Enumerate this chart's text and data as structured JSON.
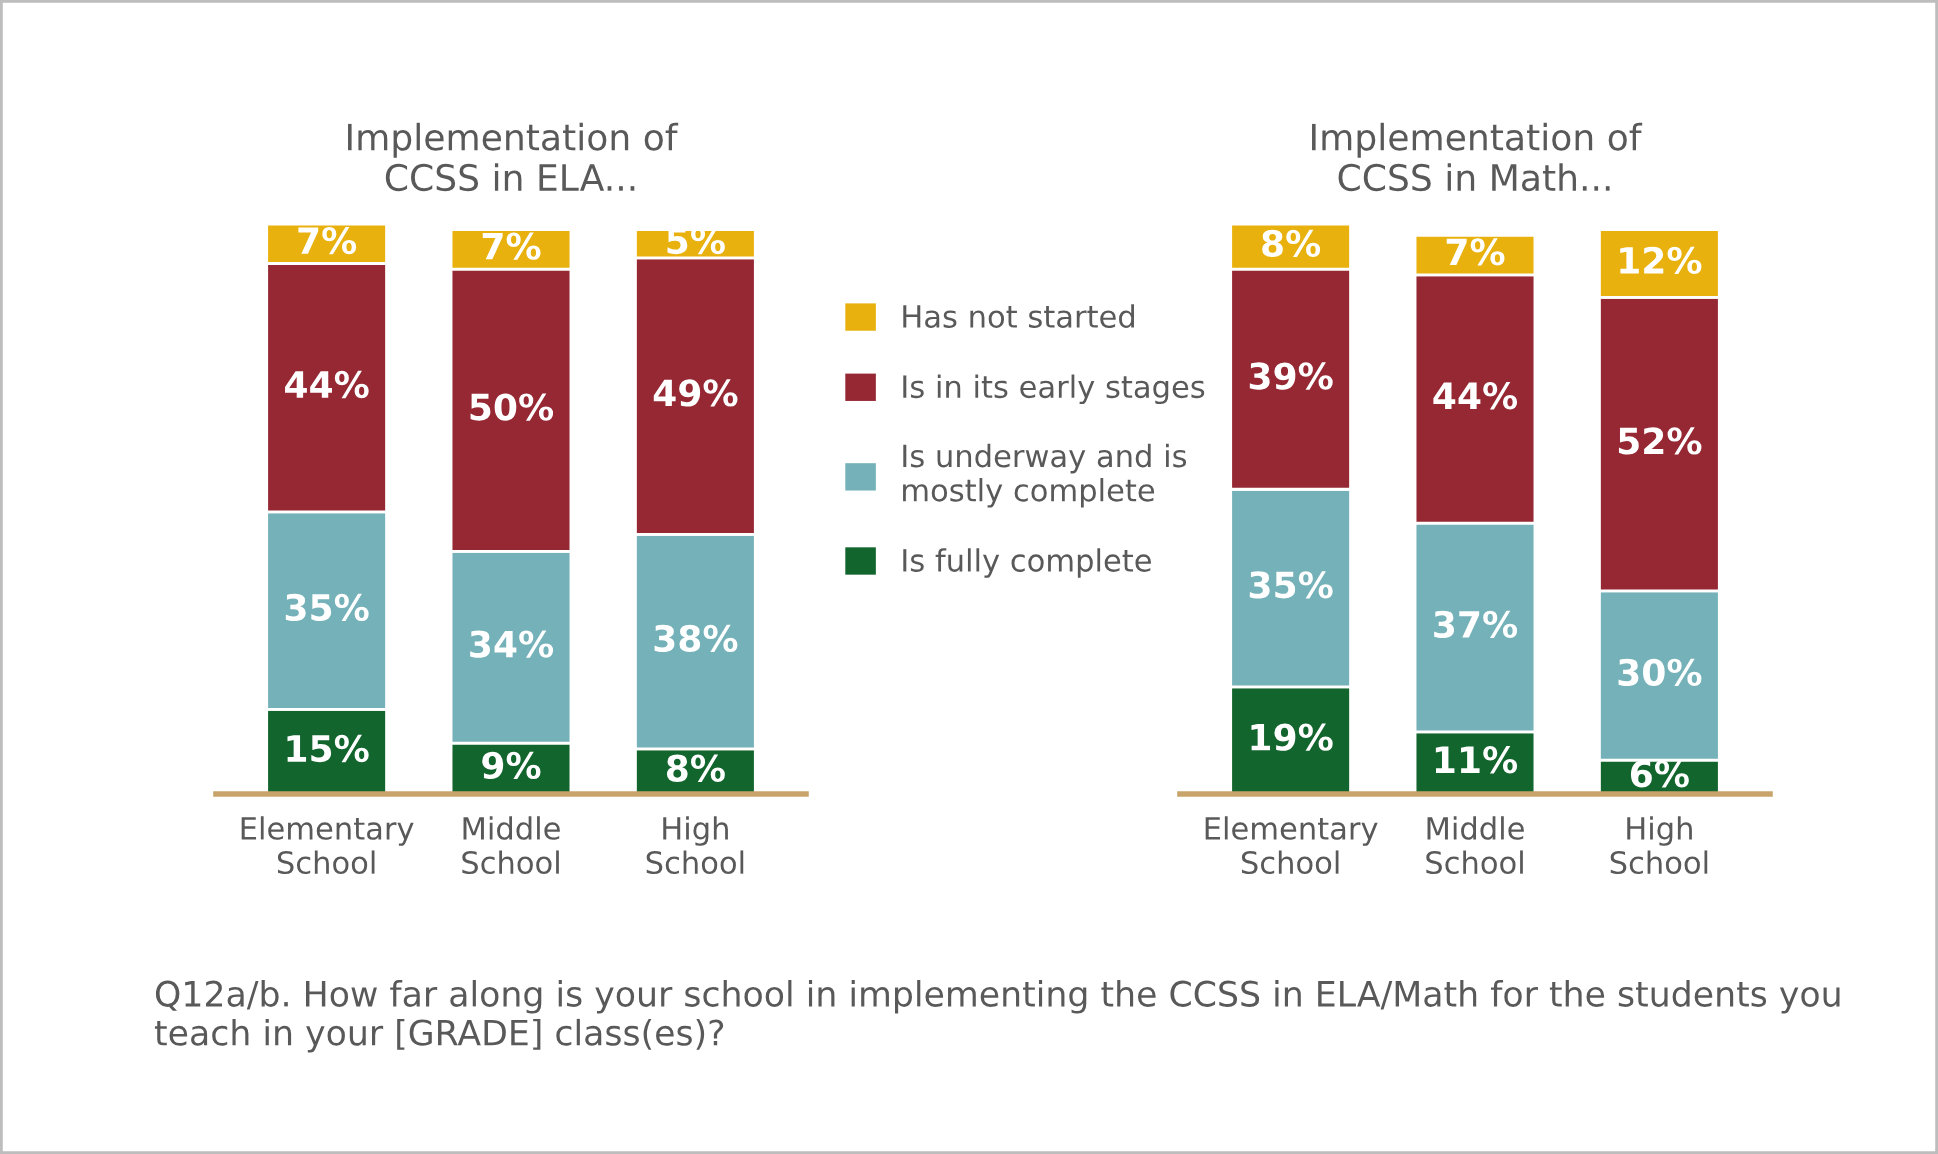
{
  "chart_data": [
    {
      "type": "bar",
      "stacked": true,
      "title": "Implementation of\nCCSS in ELA...",
      "categories": [
        "Elementary\nSchool",
        "Middle\nSchool",
        "High\nSchool"
      ],
      "legend": "right",
      "grid": false,
      "series": [
        {
          "name": "Is fully complete",
          "color": "#13652e",
          "values": [
            15,
            9,
            8
          ],
          "value_labels": [
            "15%",
            "9%",
            "8%"
          ]
        },
        {
          "name": "Is underway and is\nmostly complete",
          "color": "#74b1b8",
          "values": [
            35,
            34,
            38
          ],
          "value_labels": [
            "35%",
            "34%",
            "38%"
          ]
        },
        {
          "name": "Is in its early stages",
          "color": "#962833",
          "values": [
            44,
            50,
            49
          ],
          "value_labels": [
            "44%",
            "50%",
            "49%"
          ]
        },
        {
          "name": "Has not started",
          "color": "#e8b10e",
          "values": [
            7,
            7,
            5
          ],
          "value_labels": [
            "7%",
            "7%",
            "5%"
          ]
        }
      ],
      "annotations": [
        "Q12a/b. How far along is your school in implementing the CCSS in ELA/Math for the students you teach in your [GRADE] class(es)?"
      ]
    },
    {
      "type": "bar",
      "stacked": true,
      "title": "Implementation of\nCCSS in Math...",
      "categories": [
        "Elementary\nSchool",
        "Middle\nSchool",
        "High\nSchool"
      ],
      "grid": false,
      "series": [
        {
          "color": "#13652e",
          "values": [
            19,
            11,
            6
          ],
          "value_labels": [
            "19%",
            "11%",
            "6%"
          ]
        },
        {
          "color": "#74b1b8",
          "values": [
            35,
            37,
            30
          ],
          "value_labels": [
            "35%",
            "37%",
            "30%"
          ]
        },
        {
          "color": "#962833",
          "values": [
            39,
            44,
            52
          ],
          "value_labels": [
            "39%",
            "44%",
            "52%"
          ]
        },
        {
          "color": "#e8b10e",
          "values": [
            8,
            7,
            12
          ],
          "value_labels": [
            "8%",
            "7%",
            "12%"
          ]
        }
      ]
    }
  ]
}
